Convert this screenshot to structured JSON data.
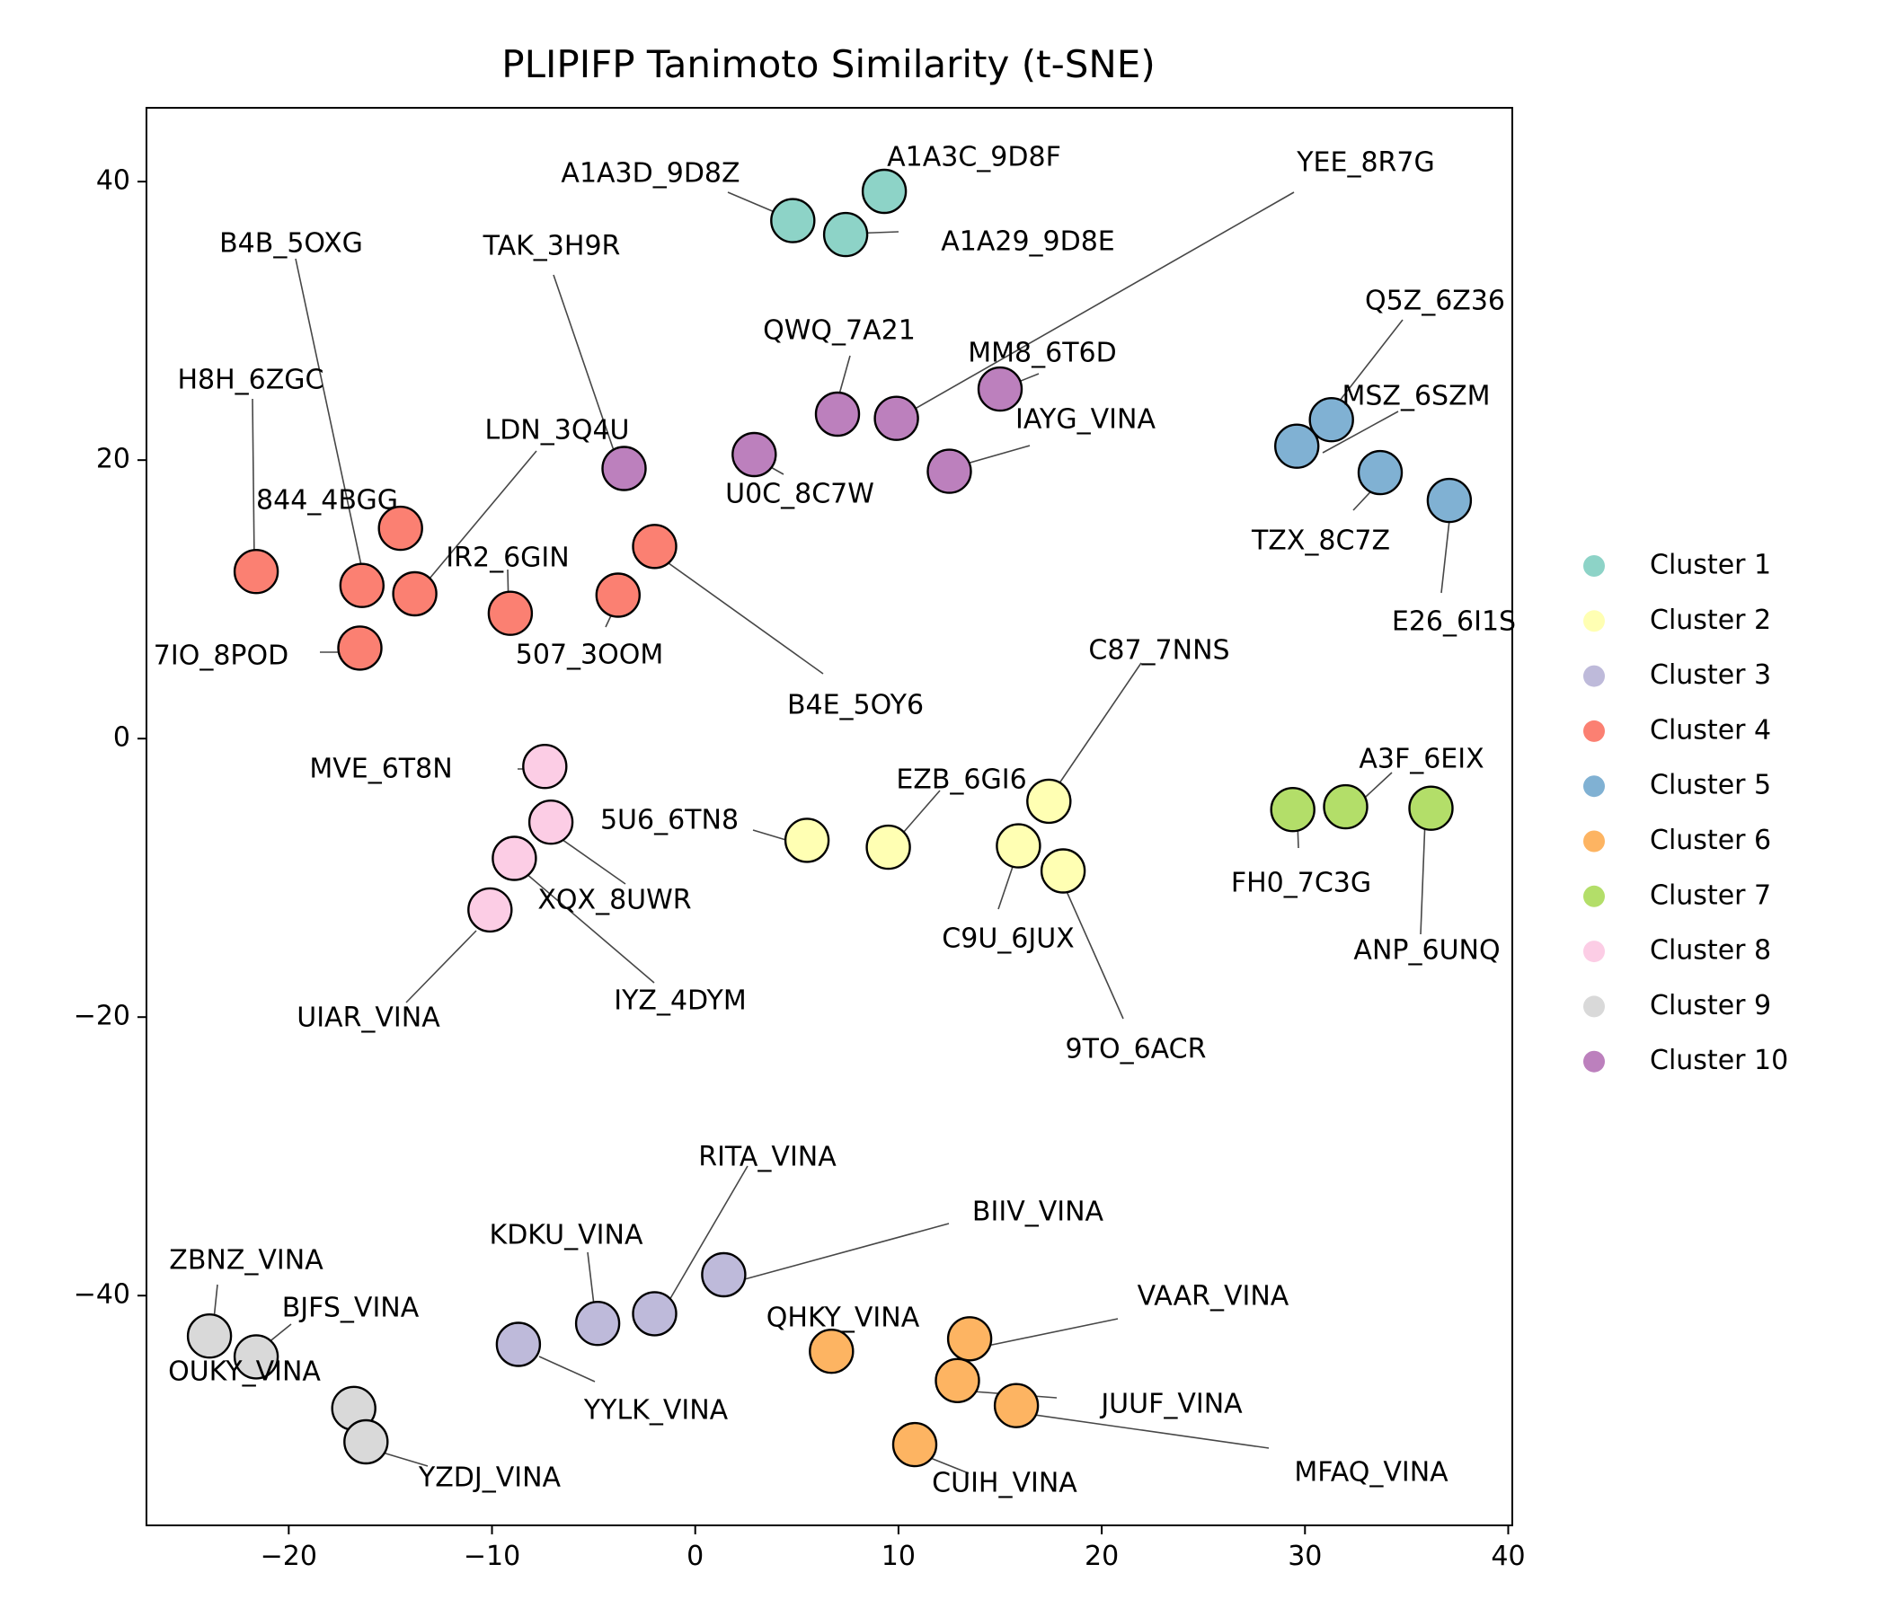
{
  "chart_data": {
    "type": "scatter",
    "title": "PLIPIFP Tanimoto Similarity (t-SNE)",
    "xlabel": "",
    "ylabel": "",
    "xlim": [
      -27,
      40.2
    ],
    "ylim": [
      -56.5,
      45.3
    ],
    "xticks": [
      -20,
      -10,
      0,
      10,
      20,
      30,
      40
    ],
    "yticks": [
      -40,
      -20,
      0,
      20,
      40
    ],
    "xtick_labels": [
      "−20",
      "−10",
      "0",
      "10",
      "20",
      "30",
      "40"
    ],
    "ytick_labels": [
      "−40",
      "−20",
      "0",
      "20",
      "40"
    ],
    "grid": false,
    "legend_position": "right",
    "series": [
      {
        "name": "Cluster 1",
        "color": "#8dd3c7",
        "points": [
          {
            "label": "A1A3D_9D8Z",
            "x": 4.8,
            "y": 37.2
          },
          {
            "label": "A1A3C_9D8F",
            "x": 9.3,
            "y": 39.3
          },
          {
            "label": "A1A29_9D8E",
            "x": 7.4,
            "y": 36.2
          }
        ]
      },
      {
        "name": "Cluster 2",
        "color": "#ffffb3",
        "points": [
          {
            "label": "C87_7NNS",
            "x": 17.4,
            "y": -4.5
          },
          {
            "label": "EZB_6GI6",
            "x": 9.5,
            "y": -7.8
          },
          {
            "label": "5U6_6TN8",
            "x": 5.5,
            "y": -7.3
          },
          {
            "label": "C9U_6JUX",
            "x": 15.9,
            "y": -7.7
          },
          {
            "label": "9TO_6ACR",
            "x": 18.1,
            "y": -9.5
          }
        ]
      },
      {
        "name": "Cluster 3",
        "color": "#bebada",
        "points": [
          {
            "label": "RITA_VINA",
            "x": -2.0,
            "y": -41.3
          },
          {
            "label": "BIIV_VINA",
            "x": 1.4,
            "y": -38.5
          },
          {
            "label": "KDKU_VINA",
            "x": -4.8,
            "y": -42.0
          },
          {
            "label": "YYLK_VINA",
            "x": -8.7,
            "y": -43.5
          }
        ]
      },
      {
        "name": "Cluster 4",
        "color": "#fb8072",
        "points": [
          {
            "label": "H8H_6ZGC",
            "x": -21.6,
            "y": 12.0
          },
          {
            "label": "B4B_5OXG",
            "x": -16.4,
            "y": 11.0
          },
          {
            "label": "844_4BGG",
            "x": -14.5,
            "y": 15.1
          },
          {
            "label": "LDN_3Q4U",
            "x": -13.8,
            "y": 10.4
          },
          {
            "label": "IR2_6GIN",
            "x": -9.1,
            "y": 9.0
          },
          {
            "label": "7IO_8POD",
            "x": -16.5,
            "y": 6.5
          },
          {
            "label": "507_3OOM",
            "x": -3.8,
            "y": 10.3
          },
          {
            "label": "B4E_5OY6",
            "x": -2.0,
            "y": 13.8
          }
        ]
      },
      {
        "name": "Cluster 5",
        "color": "#80b1d3",
        "points": [
          {
            "label": "Q5Z_6Z36",
            "x": 29.6,
            "y": 21.0
          },
          {
            "label": "MSZ_6SZM",
            "x": 31.3,
            "y": 22.9
          },
          {
            "label": "TZX_8C7Z",
            "x": 33.7,
            "y": 19.1
          },
          {
            "label": "E26_6I1S",
            "x": 37.1,
            "y": 17.1
          }
        ]
      },
      {
        "name": "Cluster 6",
        "color": "#fdb462",
        "points": [
          {
            "label": "QHKY_VINA",
            "x": 6.7,
            "y": -44.0
          },
          {
            "label": "VAAR_VINA",
            "x": 13.5,
            "y": -43.1
          },
          {
            "label": "JUUF_VINA",
            "x": 12.9,
            "y": -46.1
          },
          {
            "label": "MFAQ_VINA",
            "x": 15.8,
            "y": -47.9
          },
          {
            "label": "CUIH_VINA",
            "x": 10.8,
            "y": -50.7
          }
        ]
      },
      {
        "name": "Cluster 7",
        "color": "#b3de69",
        "points": [
          {
            "label": "FH0_7C3G",
            "x": 29.4,
            "y": -5.1
          },
          {
            "label": "A3F_6EIX",
            "x": 32.0,
            "y": -4.9
          },
          {
            "label": "ANP_6UNQ",
            "x": 36.2,
            "y": -5.0
          }
        ]
      },
      {
        "name": "Cluster 8",
        "color": "#fccde5",
        "points": [
          {
            "label": "MVE_6T8N",
            "x": -7.4,
            "y": -2.0
          },
          {
            "label": "XQX_8UWR",
            "x": -7.1,
            "y": -6.0
          },
          {
            "label": "IYZ_4DYM",
            "x": -8.9,
            "y": -8.6
          },
          {
            "label": "UIAR_VINA",
            "x": -10.1,
            "y": -12.3
          }
        ]
      },
      {
        "name": "Cluster 9",
        "color": "#d9d9d9",
        "points": [
          {
            "label": "ZBNZ_VINA",
            "x": -23.9,
            "y": -42.9
          },
          {
            "label": "BJFS_VINA",
            "x": -21.6,
            "y": -44.4
          },
          {
            "label": "OUKY_VINA",
            "x": -16.8,
            "y": -48.1
          },
          {
            "label": "YZDJ_VINA",
            "x": -16.2,
            "y": -50.5
          }
        ]
      },
      {
        "name": "Cluster 10",
        "color": "#bc80bd",
        "points": [
          {
            "label": "TAK_3H9R",
            "x": -3.5,
            "y": 19.4
          },
          {
            "label": "QWQ_7A21",
            "x": 7.0,
            "y": 23.3
          },
          {
            "label": "YEE_8R7G",
            "x": 9.9,
            "y": 23.0
          },
          {
            "label": "MM8_6T6D",
            "x": 15.0,
            "y": 25.1
          },
          {
            "label": "U0C_8C7W",
            "x": 2.9,
            "y": 20.4
          },
          {
            "label": "IAYG_VINA",
            "x": 12.5,
            "y": 19.2
          }
        ]
      }
    ]
  }
}
